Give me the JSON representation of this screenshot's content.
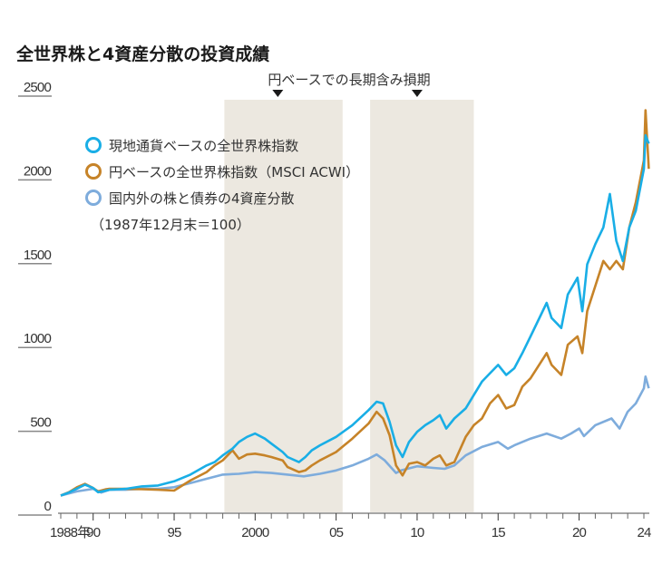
{
  "chart_data": {
    "type": "line",
    "title": "全世界株と4資産分散の投資成績",
    "xlabel": "",
    "ylabel": "",
    "xlim": [
      1988,
      2024.2
    ],
    "ylim": [
      0,
      2500
    ],
    "y_ticks": [
      0,
      500,
      1000,
      1500,
      2000,
      2500
    ],
    "x_ticks": [
      {
        "value": 1988,
        "label": "1988年"
      },
      {
        "value": 1990,
        "label": "90"
      },
      {
        "value": 1995,
        "label": "95"
      },
      {
        "value": 2000,
        "label": "2000"
      },
      {
        "value": 2005,
        "label": "05"
      },
      {
        "value": 2010,
        "label": "10"
      },
      {
        "value": 2015,
        "label": "15"
      },
      {
        "value": 2020,
        "label": "20"
      },
      {
        "value": 2024,
        "label": "24"
      }
    ],
    "grid": false,
    "legend_position": "top-left",
    "legend_note": "（1987年12月末＝100）",
    "annotation": "円ベースでの長期含み損期",
    "shaded_periods": [
      {
        "start": 1998.1,
        "end": 2005.4
      },
      {
        "start": 2007.1,
        "end": 2013.5
      }
    ],
    "annotation_markers": [
      2001.4,
      2010.0
    ],
    "series": [
      {
        "name": "現地通貨ベースの全世界株指数",
        "color": "#19aee6",
        "x": [
          1988,
          1988.5,
          1989,
          1989.5,
          1990,
          1990.3,
          1990.8,
          1991,
          1992,
          1993,
          1994,
          1995,
          1996,
          1997,
          1997.5,
          1998,
          1998.6,
          1999,
          1999.5,
          2000,
          2000.6,
          2001,
          2001.7,
          2002,
          2002.7,
          2003.1,
          2003.5,
          2004,
          2005,
          2006,
          2007,
          2007.5,
          2007.9,
          2008.3,
          2008.7,
          2009.1,
          2009.5,
          2010,
          2010.5,
          2011,
          2011.4,
          2011.8,
          2012.3,
          2013,
          2013.5,
          2014,
          2014.5,
          2015,
          2015.5,
          2016,
          2016.5,
          2017,
          2018,
          2018.3,
          2018.9,
          2019.3,
          2019.9,
          2020.2,
          2020.5,
          2021,
          2021.5,
          2021.9,
          2022.3,
          2022.7,
          2023.1,
          2023.5,
          2024,
          2024.1,
          2024.3
        ],
        "values": [
          100,
          118,
          142,
          165,
          145,
          120,
          130,
          135,
          140,
          155,
          160,
          185,
          225,
          280,
          300,
          340,
          380,
          420,
          450,
          470,
          440,
          410,
          360,
          330,
          300,
          330,
          370,
          400,
          450,
          520,
          610,
          660,
          650,
          540,
          400,
          330,
          420,
          480,
          520,
          550,
          580,
          500,
          560,
          620,
          700,
          780,
          830,
          880,
          820,
          860,
          950,
          1050,
          1250,
          1160,
          1100,
          1300,
          1400,
          1200,
          1480,
          1600,
          1700,
          1900,
          1620,
          1500,
          1700,
          1800,
          2050,
          2250,
          2200
        ]
      },
      {
        "name": "円ベースの全世界株指数（MSCI ACWI）",
        "color": "#c68328",
        "x": [
          1988,
          1988.5,
          1989,
          1989.5,
          1990,
          1990.3,
          1990.8,
          1991,
          1992,
          1993,
          1994,
          1995,
          1996,
          1997,
          1997.5,
          1998,
          1998.6,
          1999,
          1999.5,
          2000,
          2000.6,
          2001,
          2001.7,
          2002,
          2002.7,
          2003.1,
          2003.5,
          2004,
          2005,
          2006,
          2007,
          2007.5,
          2007.9,
          2008.3,
          2008.7,
          2009.1,
          2009.5,
          2010,
          2010.5,
          2011,
          2011.4,
          2011.8,
          2012.3,
          2013,
          2013.5,
          2014,
          2014.5,
          2015,
          2015.5,
          2016,
          2016.5,
          2017,
          2018,
          2018.3,
          2018.9,
          2019.3,
          2019.9,
          2020.2,
          2020.5,
          2021,
          2021.5,
          2021.9,
          2022.3,
          2022.7,
          2023.1,
          2023.5,
          2024,
          2024.1,
          2024.3
        ],
        "values": [
          100,
          120,
          150,
          170,
          145,
          125,
          138,
          140,
          140,
          138,
          135,
          130,
          190,
          240,
          280,
          310,
          370,
          320,
          345,
          350,
          340,
          330,
          310,
          270,
          240,
          250,
          280,
          310,
          360,
          440,
          530,
          600,
          560,
          460,
          280,
          220,
          290,
          300,
          280,
          320,
          340,
          280,
          300,
          450,
          520,
          560,
          650,
          700,
          620,
          640,
          750,
          800,
          950,
          880,
          820,
          1000,
          1050,
          950,
          1200,
          1350,
          1500,
          1450,
          1500,
          1450,
          1700,
          1850,
          2100,
          2400,
          2050
        ]
      },
      {
        "name": "国内外の株と債券の4資産分散",
        "color": "#7eacdc",
        "x": [
          1988,
          1989,
          1990,
          1990.5,
          1991,
          1992,
          1993,
          1994,
          1995,
          1996,
          1997,
          1998,
          1999,
          2000,
          2001,
          2002,
          2003,
          2004,
          2005,
          2006,
          2007,
          2007.5,
          2008,
          2008.7,
          2009,
          2010,
          2011,
          2011.7,
          2012.3,
          2013,
          2014,
          2015,
          2015.6,
          2016,
          2017,
          2018,
          2018.9,
          2019.5,
          2020,
          2020.3,
          2021,
          2022,
          2022.5,
          2023,
          2023.5,
          2024,
          2024.1,
          2024.3
        ],
        "values": [
          100,
          125,
          140,
          118,
          135,
          135,
          140,
          140,
          150,
          175,
          200,
          225,
          230,
          240,
          235,
          225,
          215,
          230,
          250,
          280,
          320,
          345,
          310,
          235,
          250,
          275,
          265,
          260,
          280,
          340,
          390,
          420,
          380,
          400,
          440,
          470,
          440,
          470,
          500,
          455,
          520,
          560,
          500,
          600,
          650,
          740,
          810,
          740
        ]
      }
    ]
  }
}
